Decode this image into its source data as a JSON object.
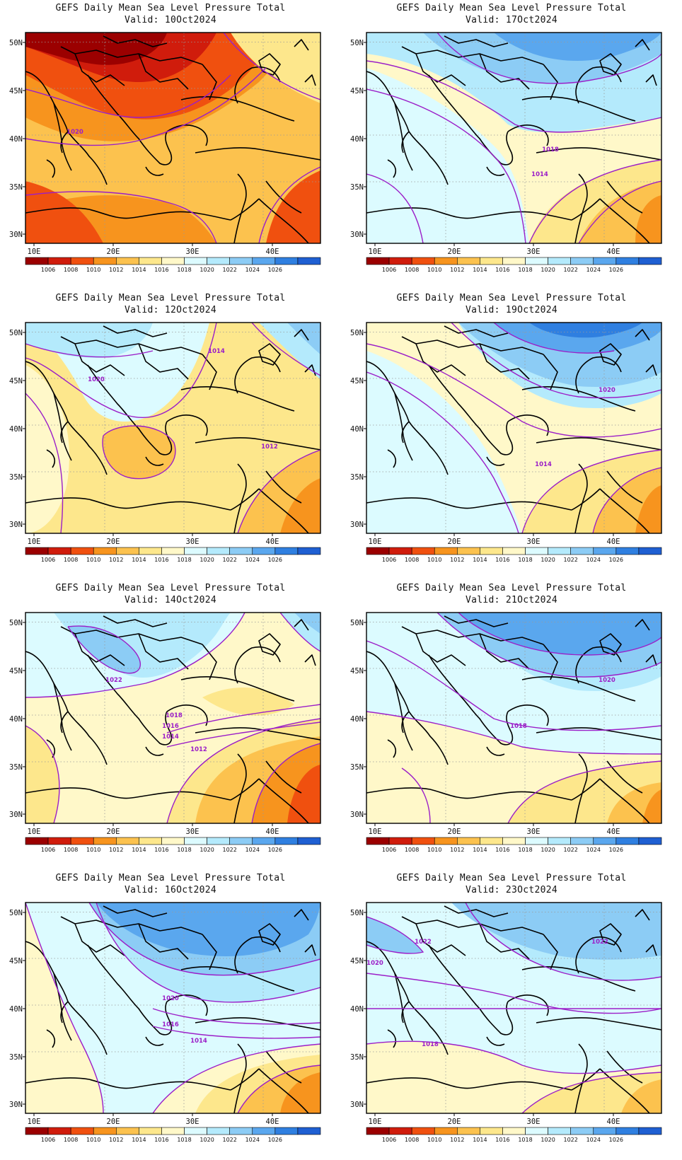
{
  "title": "GEFS Daily Mean Sea Level Pressure Total",
  "valid_prefix": "Valid:",
  "lat_labels": [
    "50N",
    "45N",
    "40N",
    "35N",
    "30N"
  ],
  "lon_labels": [
    "10E",
    "20E",
    "30E",
    "40E"
  ],
  "colorbar": {
    "labels": [
      "1006",
      "1008",
      "1010",
      "1012",
      "1014",
      "1016",
      "1018",
      "1020",
      "1022",
      "1024",
      "1026"
    ],
    "colors": [
      "#9b0000",
      "#d01c0c",
      "#f0500f",
      "#f7941e",
      "#fcc24e",
      "#fde78c",
      "#fff8c9",
      "#dcfbff",
      "#b4eafc",
      "#8cccf5",
      "#5aa7ee",
      "#2f7fe0",
      "#1f5fd2"
    ]
  },
  "panels": [
    {
      "valid": "10Oct2024",
      "contour_labels": [
        "1020"
      ]
    },
    {
      "valid": "17Oct2024",
      "contour_labels": [
        "1018",
        "1014"
      ]
    },
    {
      "valid": "12Oct2024",
      "contour_labels": [
        "1014",
        "1020",
        "1012"
      ]
    },
    {
      "valid": "19Oct2024",
      "contour_labels": [
        "1020",
        "1014"
      ]
    },
    {
      "valid": "14Oct2024",
      "contour_labels": [
        "1022",
        "1018",
        "1016",
        "1014",
        "1012"
      ]
    },
    {
      "valid": "21Oct2024",
      "contour_labels": [
        "1020",
        "1018"
      ]
    },
    {
      "valid": "16Oct2024",
      "contour_labels": [
        "1020",
        "1016",
        "1014"
      ]
    },
    {
      "valid": "23Oct2024",
      "contour_labels": [
        "1022",
        "1022",
        "1020",
        "1018"
      ]
    }
  ]
}
